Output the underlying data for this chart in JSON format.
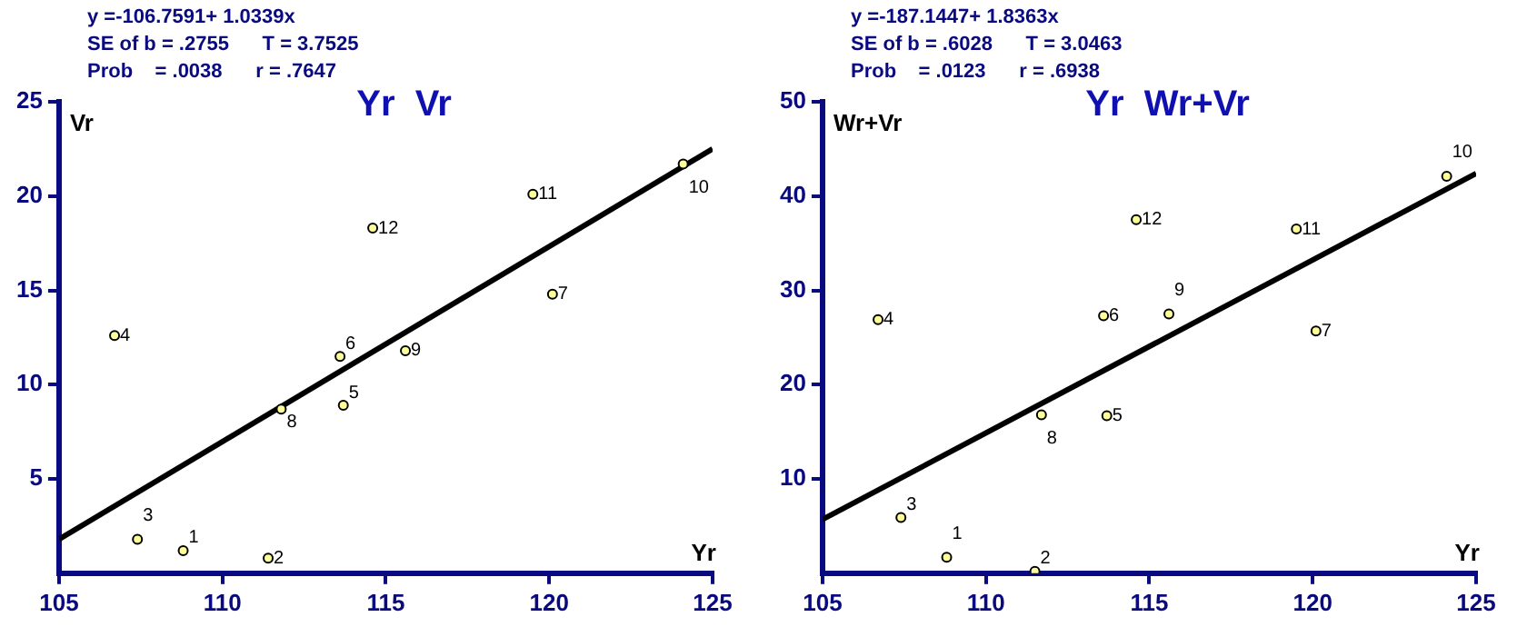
{
  "chart_data": [
    {
      "type": "scatter",
      "title": "Yr  Vr",
      "xlabel": "Yr",
      "ylabel": "Vr",
      "xlim": [
        105,
        125
      ],
      "xticks": [
        105,
        110,
        115,
        120,
        125
      ],
      "ylim": [
        0,
        25
      ],
      "yticks": [
        5,
        10,
        15,
        20,
        25
      ],
      "grid": false,
      "legend": false,
      "marker": "circle",
      "annotations": [
        "y =-106.7591+ 1.0339x",
        "SE of b = .2755      T = 3.7525",
        "Prob    = .0038      r = .7647",
        {
          "text": "1",
          "x": 108.8,
          "y": 1.2
        },
        {
          "text": "2",
          "x": 111.4,
          "y": 0.8
        },
        {
          "text": "3",
          "x": 107.4,
          "y": 1.8
        },
        {
          "text": "4",
          "x": 106.7,
          "y": 12.6
        },
        {
          "text": "5",
          "x": 113.7,
          "y": 8.9
        },
        {
          "text": "6",
          "x": 113.6,
          "y": 11.5
        },
        {
          "text": "7",
          "x": 120.1,
          "y": 14.8
        },
        {
          "text": "8",
          "x": 111.8,
          "y": 8.7
        },
        {
          "text": "9",
          "x": 115.6,
          "y": 11.8
        },
        {
          "text": "10",
          "x": 124.1,
          "y": 21.7
        },
        {
          "text": "11",
          "x": 119.5,
          "y": 20.1
        },
        {
          "text": "12",
          "x": 114.6,
          "y": 18.3
        }
      ],
      "series": [
        {
          "type": "scatter",
          "color": "#000000",
          "x": [
            108.8,
            111.4,
            107.4,
            106.7,
            113.7,
            113.6,
            120.1,
            111.8,
            115.6,
            124.1,
            119.5,
            114.6
          ],
          "values": [
            1.2,
            0.8,
            1.8,
            12.6,
            8.9,
            11.5,
            14.8,
            8.7,
            11.8,
            21.7,
            20.1,
            18.3
          ]
        },
        {
          "type": "line",
          "color": "#000000",
          "marker": "none",
          "x": [
            105,
            125
          ],
          "values": [
            1.8,
            22.5
          ]
        }
      ]
    },
    {
      "type": "scatter",
      "title": "Yr  Wr+Vr",
      "xlabel": "Yr",
      "ylabel": "Wr+Vr",
      "xlim": [
        105,
        125
      ],
      "xticks": [
        105,
        110,
        115,
        120,
        125
      ],
      "ylim": [
        0,
        50
      ],
      "yticks": [
        10,
        20,
        30,
        40,
        50
      ],
      "grid": false,
      "legend": false,
      "marker": "circle",
      "annotations": [
        "y =-187.1447+ 1.8363x",
        "SE of b = .6028      T = 3.0463",
        "Prob    = .0123      r = .6938",
        {
          "text": "1",
          "x": 108.8,
          "y": 1.7
        },
        {
          "text": "2",
          "x": 111.5,
          "y": 0.2
        },
        {
          "text": "3",
          "x": 107.4,
          "y": 5.9
        },
        {
          "text": "4",
          "x": 106.7,
          "y": 26.9
        },
        {
          "text": "5",
          "x": 113.7,
          "y": 16.7
        },
        {
          "text": "6",
          "x": 113.6,
          "y": 27.3
        },
        {
          "text": "7",
          "x": 120.1,
          "y": 25.7
        },
        {
          "text": "8",
          "x": 111.7,
          "y": 16.8
        },
        {
          "text": "9",
          "x": 115.6,
          "y": 27.5
        },
        {
          "text": "10",
          "x": 124.1,
          "y": 42.1
        },
        {
          "text": "11",
          "x": 119.5,
          "y": 36.5
        },
        {
          "text": "12",
          "x": 114.6,
          "y": 37.5
        }
      ],
      "series": [
        {
          "type": "scatter",
          "color": "#000000",
          "x": [
            108.8,
            111.5,
            107.4,
            106.7,
            113.7,
            113.6,
            120.1,
            111.7,
            115.6,
            124.1,
            119.5,
            114.6
          ],
          "values": [
            1.7,
            0.2,
            5.9,
            26.9,
            16.7,
            27.3,
            25.7,
            16.8,
            27.5,
            42.1,
            36.5,
            37.5
          ]
        },
        {
          "type": "line",
          "color": "#000000",
          "marker": "none",
          "x": [
            105,
            125
          ],
          "values": [
            5.7,
            42.4
          ]
        }
      ]
    }
  ]
}
